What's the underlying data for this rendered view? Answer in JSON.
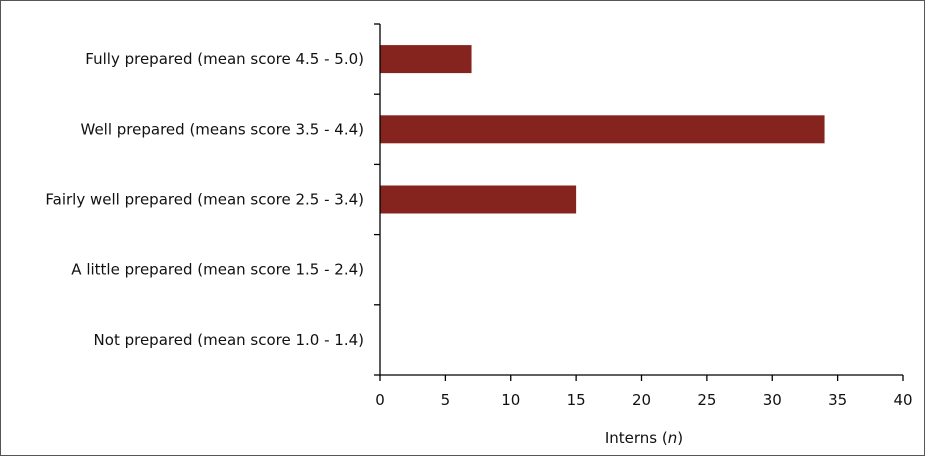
{
  "chart_data": {
    "type": "bar",
    "orientation": "horizontal",
    "categories": [
      "Fully prepared (mean score 4.5 - 5.0)",
      "Well prepared (means score 3.5 - 4.4)",
      "Fairly well prepared (mean score 2.5 - 3.4)",
      "A little prepared (mean score 1.5 - 2.4)",
      "Not prepared (mean score 1.0 - 1.4)"
    ],
    "values": [
      7,
      34,
      15,
      0,
      0
    ],
    "xlim": [
      0,
      40
    ],
    "xticks": [
      0,
      5,
      10,
      15,
      20,
      25,
      30,
      35,
      40
    ],
    "xlabel_prefix": "Interns (",
    "xlabel_var": "n",
    "xlabel_suffix": ")",
    "grid": false,
    "bar_color": "#85231f"
  }
}
